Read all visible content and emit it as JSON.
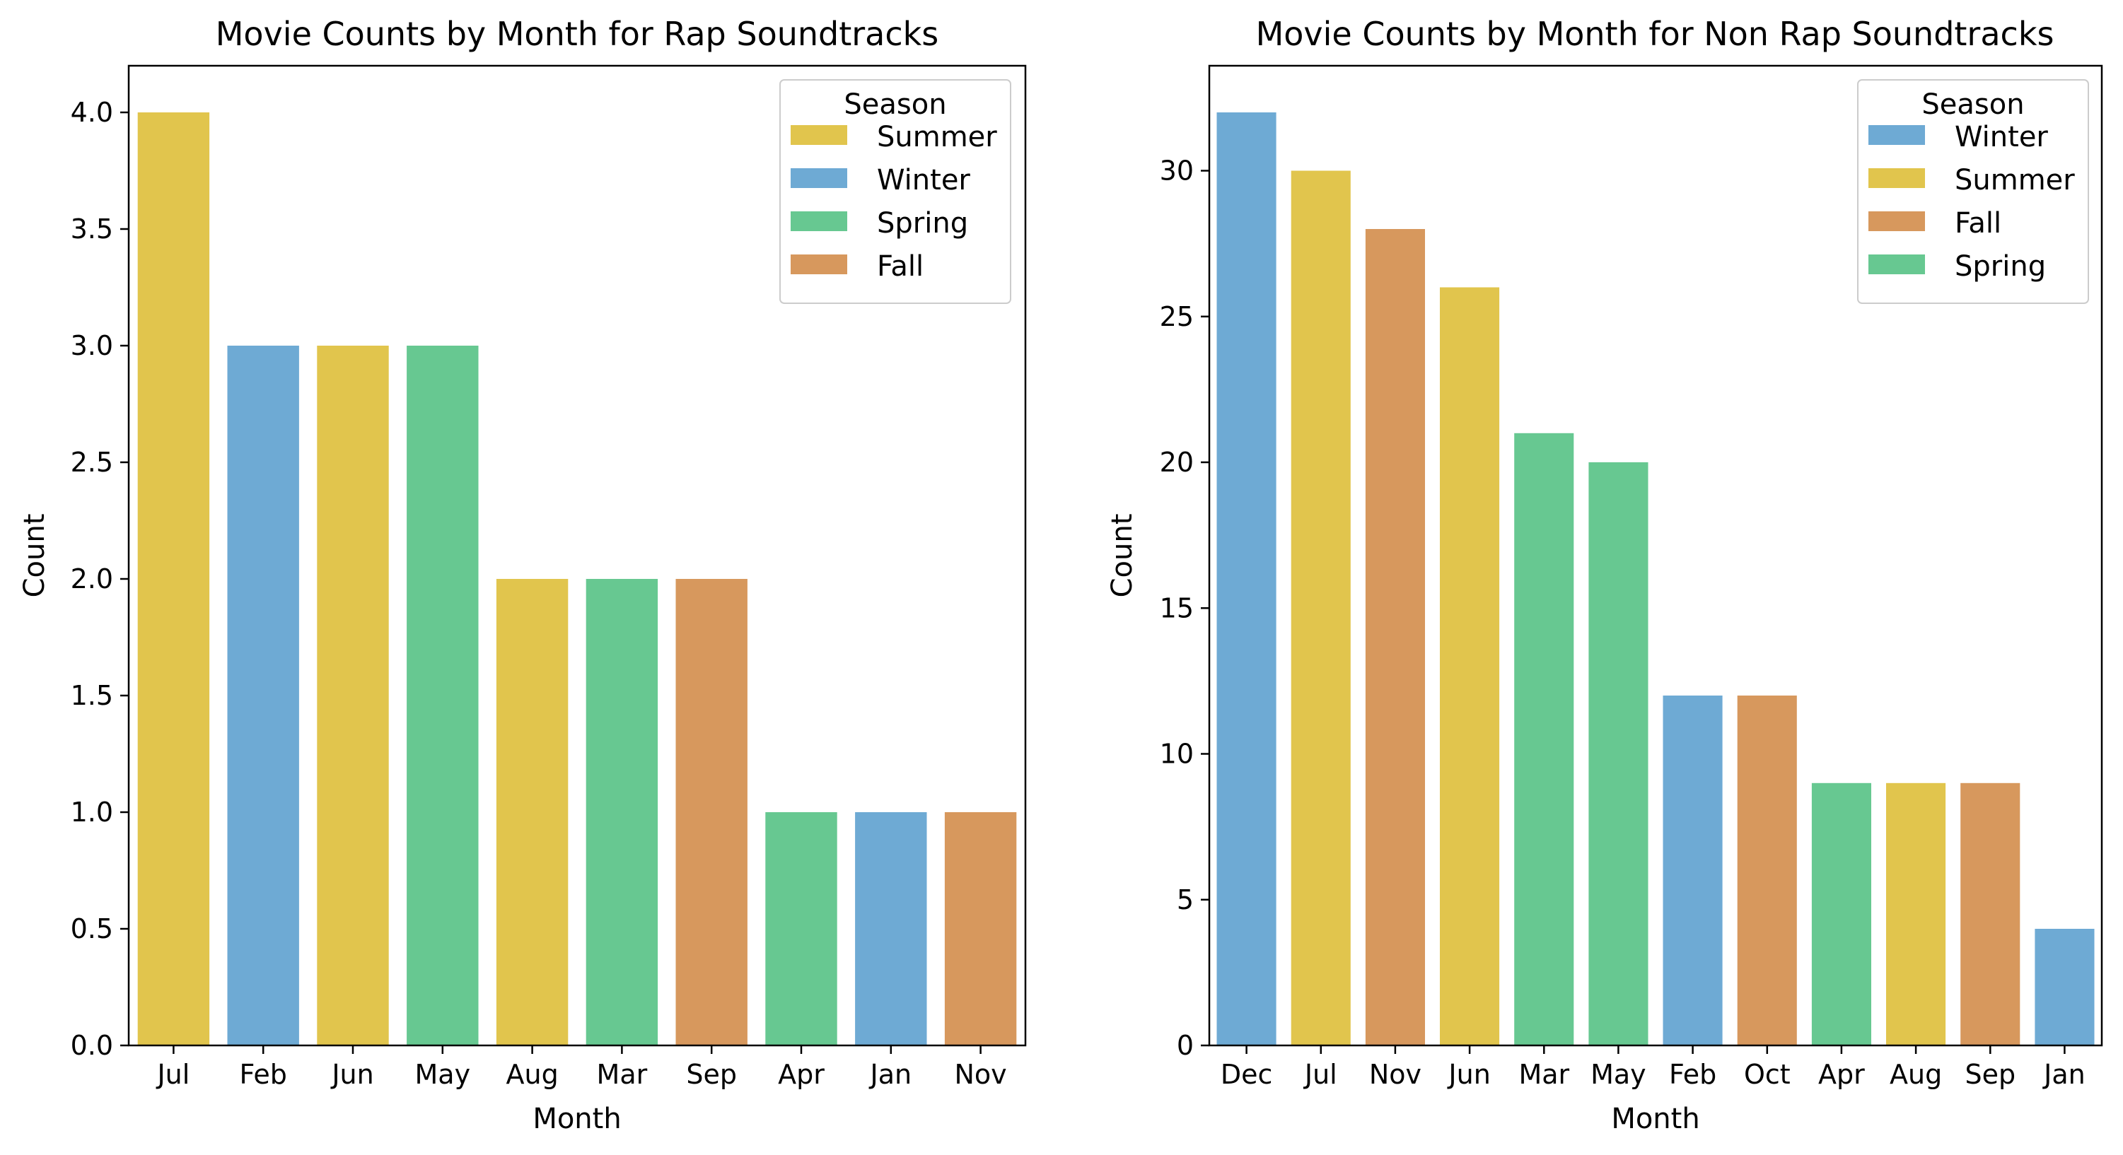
{
  "seasons": {
    "Summer": "#e1c54d",
    "Winter": "#6eaad4",
    "Spring": "#67c891",
    "Fall": "#d7985d"
  },
  "chart_data": [
    {
      "type": "bar",
      "title": "Movie Counts by Month for Rap Soundtracks",
      "xlabel": "Month",
      "ylabel": "Count",
      "ylim": [
        0,
        4.2
      ],
      "yticks": [
        "0.0",
        "0.5",
        "1.0",
        "1.5",
        "2.0",
        "2.5",
        "3.0",
        "3.5",
        "4.0"
      ],
      "grid": false,
      "legend_title": "Season",
      "legend_placement": "top-right",
      "legend": [
        "Summer",
        "Winter",
        "Spring",
        "Fall"
      ],
      "categories": [
        "Jul",
        "Feb",
        "Jun",
        "May",
        "Aug",
        "Mar",
        "Sep",
        "Apr",
        "Jan",
        "Nov"
      ],
      "values": [
        4,
        3,
        3,
        3,
        2,
        2,
        2,
        1,
        1,
        1
      ],
      "season": [
        "Summer",
        "Winter",
        "Summer",
        "Spring",
        "Summer",
        "Spring",
        "Fall",
        "Spring",
        "Winter",
        "Fall"
      ]
    },
    {
      "type": "bar",
      "title": "Movie Counts by Month for Non Rap Soundtracks",
      "xlabel": "Month",
      "ylabel": "Count",
      "ylim": [
        0,
        33.6
      ],
      "yticks": [
        "0",
        "5",
        "10",
        "15",
        "20",
        "25",
        "30"
      ],
      "grid": false,
      "legend_title": "Season",
      "legend_placement": "top-right",
      "legend": [
        "Winter",
        "Summer",
        "Fall",
        "Spring"
      ],
      "categories": [
        "Dec",
        "Jul",
        "Nov",
        "Jun",
        "Mar",
        "May",
        "Feb",
        "Oct",
        "Apr",
        "Aug",
        "Sep",
        "Jan"
      ],
      "values": [
        32,
        30,
        28,
        26,
        21,
        20,
        12,
        12,
        9,
        9,
        9,
        4
      ],
      "season": [
        "Winter",
        "Summer",
        "Fall",
        "Summer",
        "Spring",
        "Spring",
        "Winter",
        "Fall",
        "Spring",
        "Summer",
        "Fall",
        "Winter"
      ]
    }
  ]
}
